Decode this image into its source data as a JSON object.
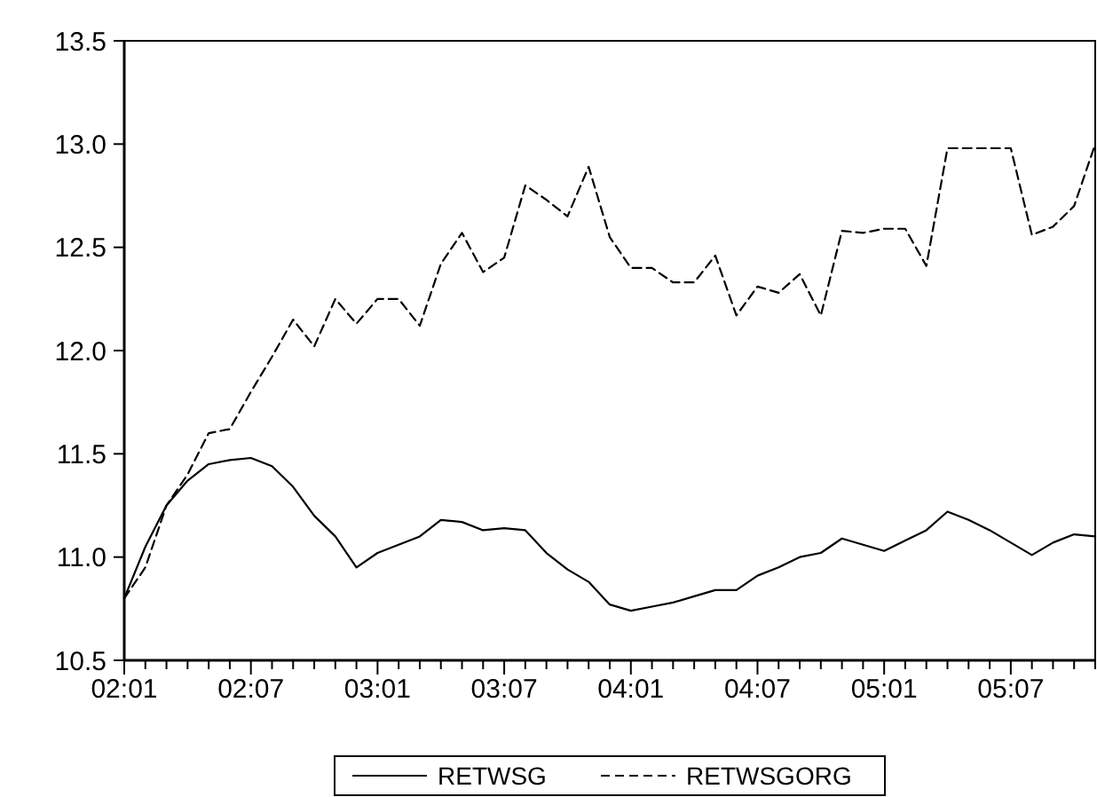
{
  "chart_data": {
    "type": "line",
    "categories": [
      "02:01",
      null,
      null,
      null,
      null,
      null,
      "02:07",
      null,
      null,
      null,
      null,
      null,
      "03:01",
      null,
      null,
      null,
      null,
      null,
      "03:07",
      null,
      null,
      null,
      null,
      null,
      "04:01",
      null,
      null,
      null,
      null,
      null,
      "04:07",
      null,
      null,
      null,
      null,
      null,
      "05:01",
      null,
      null,
      null,
      null,
      null,
      "05:07",
      null,
      null,
      null,
      null
    ],
    "series": [
      {
        "name": "RETWSG",
        "color": "#000000",
        "line_style": "solid",
        "values": [
          10.8,
          11.05,
          11.25,
          11.37,
          11.45,
          11.47,
          11.48,
          11.44,
          11.34,
          11.2,
          11.1,
          10.95,
          11.02,
          11.06,
          11.1,
          11.18,
          11.17,
          11.13,
          11.14,
          11.13,
          11.02,
          10.94,
          10.88,
          10.77,
          10.74,
          10.76,
          10.78,
          10.81,
          10.84,
          10.84,
          10.91,
          10.95,
          11.0,
          11.02,
          11.09,
          11.06,
          11.03,
          11.08,
          11.13,
          11.22,
          11.18,
          11.13,
          11.07,
          11.01,
          11.07,
          11.11,
          11.1
        ]
      },
      {
        "name": "RETWSGORG",
        "color": "#000000",
        "line_style": "dashed",
        "values": [
          10.8,
          10.95,
          11.25,
          11.4,
          11.6,
          11.62,
          11.8,
          11.97,
          12.15,
          12.02,
          12.25,
          12.13,
          12.25,
          12.25,
          12.12,
          12.42,
          12.57,
          12.38,
          12.45,
          12.8,
          12.73,
          12.65,
          12.89,
          12.55,
          12.4,
          12.4,
          12.33,
          12.33,
          12.46,
          12.17,
          12.31,
          12.28,
          12.37,
          12.17,
          12.58,
          12.57,
          12.59,
          12.59,
          12.41,
          12.98,
          12.98,
          12.98,
          12.98,
          12.56,
          12.6,
          12.7,
          13.0
        ]
      }
    ],
    "ylim": [
      10.5,
      13.5
    ],
    "yticks": [
      {
        "value": 10.5,
        "label": "10.5"
      },
      {
        "value": 11,
        "label": "11.0"
      },
      {
        "value": 11.5,
        "label": "11.5"
      },
      {
        "value": 12,
        "label": "12.0"
      },
      {
        "value": 12.5,
        "label": "12.5"
      },
      {
        "value": 13,
        "label": "13.0"
      },
      {
        "value": 13.5,
        "label": "13.5"
      }
    ],
    "grid": false,
    "legend": "bottom",
    "marker": "none"
  }
}
